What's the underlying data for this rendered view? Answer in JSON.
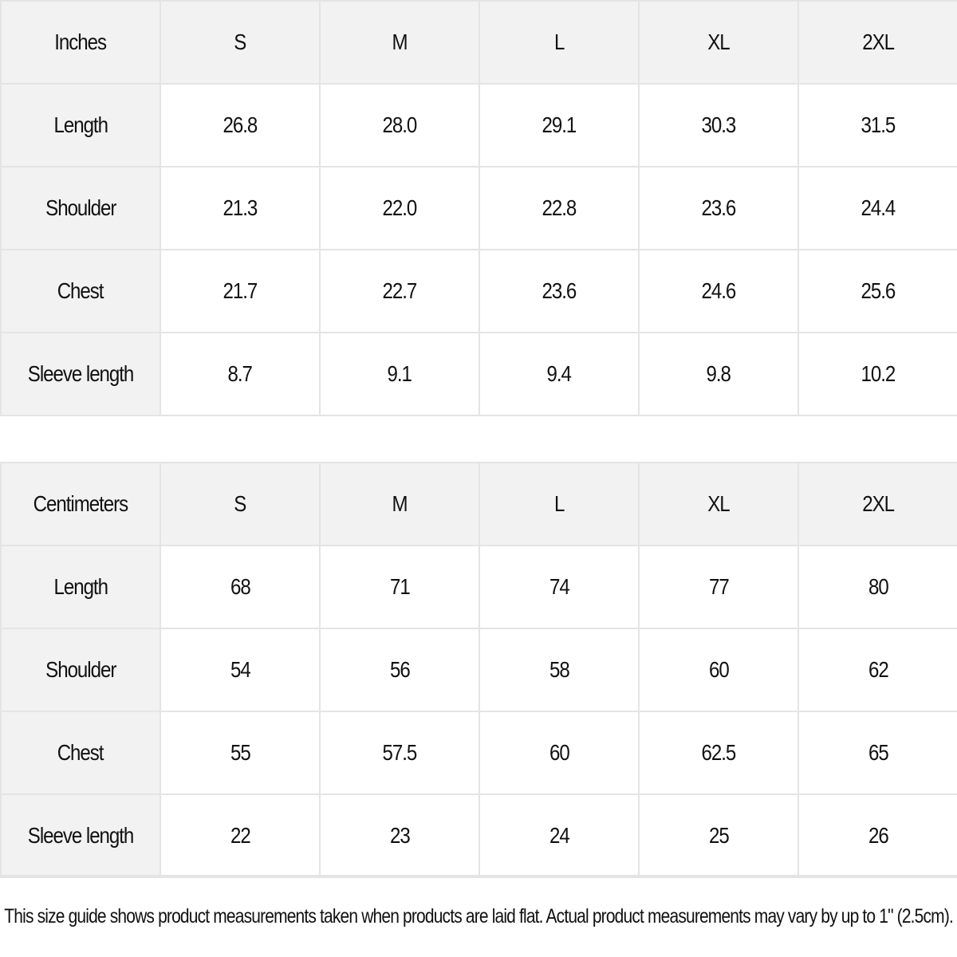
{
  "inches": {
    "header": [
      "Inches",
      "S",
      "M",
      "L",
      "XL",
      "2XL"
    ],
    "rows": [
      {
        "label": "Length",
        "values": [
          "26.8",
          "28.0",
          "29.1",
          "30.3",
          "31.5"
        ]
      },
      {
        "label": "Shoulder",
        "values": [
          "21.3",
          "22.0",
          "22.8",
          "23.6",
          "24.4"
        ]
      },
      {
        "label": "Chest",
        "values": [
          "21.7",
          "22.7",
          "23.6",
          "24.6",
          "25.6"
        ]
      },
      {
        "label": "Sleeve length",
        "values": [
          "8.7",
          "9.1",
          "9.4",
          "9.8",
          "10.2"
        ]
      }
    ]
  },
  "centimeters": {
    "header": [
      "Centimeters",
      "S",
      "M",
      "L",
      "XL",
      "2XL"
    ],
    "rows": [
      {
        "label": "Length",
        "values": [
          "68",
          "71",
          "74",
          "77",
          "80"
        ]
      },
      {
        "label": "Shoulder",
        "values": [
          "54",
          "56",
          "58",
          "60",
          "62"
        ]
      },
      {
        "label": "Chest",
        "values": [
          "55",
          "57.5",
          "60",
          "62.5",
          "65"
        ]
      },
      {
        "label": "Sleeve length",
        "values": [
          "22",
          "23",
          "24",
          "25",
          "26"
        ]
      }
    ]
  },
  "note": "This size guide shows product measurements taken when products are laid flat.  Actual product measurements may vary by up to 1\" (2.5cm).",
  "colors": {
    "header_bg": "#f2f2f2",
    "cell_bg": "#ffffff",
    "border": "#e4e4e4",
    "text": "#111111"
  }
}
